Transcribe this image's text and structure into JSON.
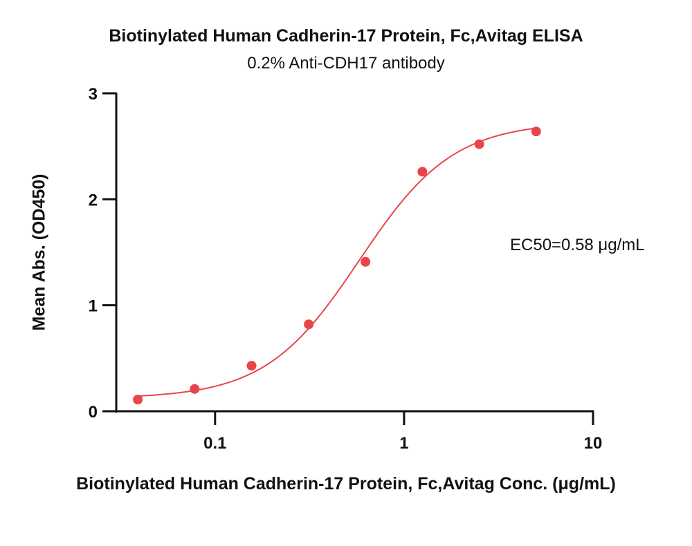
{
  "chart_data": {
    "type": "scatter",
    "title": "Biotinylated Human Cadherin-17 Protein, Fc,Avitag ELISA",
    "subtitle": "0.2% Anti-CDH17 antibody",
    "xlabel": "Biotinylated Human Cadherin-17 Protein, Fc,Avitag Conc. (μg/mL)",
    "ylabel": "Mean Abs. (OD450)",
    "xscale": "log",
    "xlim": [
      0.03,
      10
    ],
    "ylim": [
      0,
      3
    ],
    "xticks": [
      0.1,
      1,
      10
    ],
    "xtick_labels": [
      "0.1",
      "1",
      "10"
    ],
    "yticks": [
      0,
      1,
      2,
      3
    ],
    "ytick_labels": [
      "0",
      "1",
      "2",
      "3"
    ],
    "grid": false,
    "points": {
      "x": [
        0.039,
        0.078,
        0.156,
        0.313,
        0.625,
        1.25,
        2.5,
        5.0
      ],
      "y": [
        0.11,
        0.21,
        0.43,
        0.82,
        1.41,
        2.26,
        2.52,
        2.64
      ]
    },
    "fit_curve": {
      "model": "4PL",
      "bottom": 0.12,
      "top": 2.73,
      "ec50": 0.58,
      "hill": 1.75
    },
    "annotation": "EC50=0.58 μg/mL",
    "colors": {
      "points": "#e8454a",
      "curve": "#e8454a",
      "axis": "#111111"
    }
  }
}
